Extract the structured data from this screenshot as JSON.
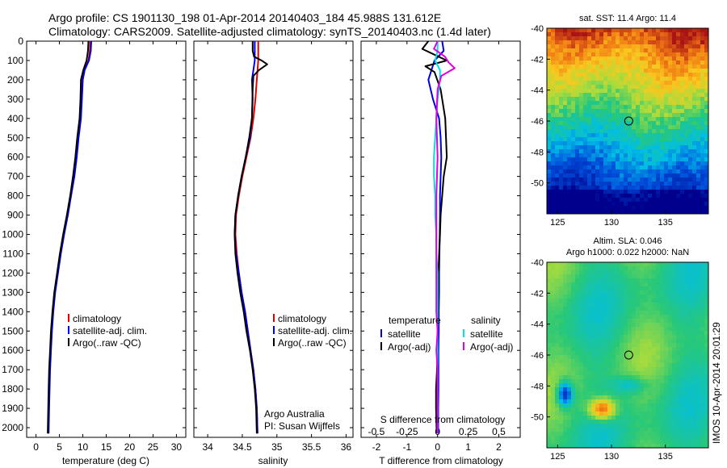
{
  "header": {
    "line1": "Argo profile: CS 1901130_198 01-Apr-2014 20140403_184 45.988S 131.612E",
    "line2": "Climatology: CARS2009. Satellite-adjusted climatology: synTS_20140403.nc (1.4d later)"
  },
  "colors": {
    "climatology": "#e00000",
    "satellite": "#0000e0",
    "argo": "#000000",
    "salinity_satellite": "#00e0e0",
    "salinity_argo": "#e000e0"
  },
  "side_text": "IMOS 10-Apr-2014 20:01:29",
  "chart_data": [
    {
      "type": "line",
      "xlabel": "temperature (deg C)",
      "ylabel": "",
      "xlim": [
        -2,
        32
      ],
      "ylim": [
        2050,
        0
      ],
      "xticks": [
        0,
        5,
        10,
        15,
        20,
        25,
        30
      ],
      "yticks": [
        0,
        100,
        200,
        300,
        400,
        500,
        600,
        700,
        800,
        900,
        1000,
        1100,
        1200,
        1300,
        1400,
        1500,
        1600,
        1700,
        1800,
        1900,
        2000
      ],
      "legend": [
        "climatology",
        "satellite-adj. clim.",
        "Argo(..raw -QC)"
      ],
      "legend_position": "lower-right",
      "series": [
        {
          "name": "climatology",
          "color": "#e00000",
          "x": [
            11.6,
            11.5,
            11.2,
            10.3,
            9.9,
            9.7,
            9.5,
            9.0,
            8.6,
            8.1,
            7.4,
            6.7,
            5.9,
            5.2,
            4.6,
            4.0,
            3.6,
            3.3,
            3.1,
            2.9,
            2.8,
            2.7,
            2.6
          ],
          "y": [
            0,
            50,
            100,
            150,
            200,
            300,
            400,
            500,
            600,
            700,
            800,
            900,
            1000,
            1100,
            1200,
            1300,
            1400,
            1500,
            1600,
            1700,
            1800,
            1900,
            2030
          ]
        },
        {
          "name": "satellite-adj. clim.",
          "color": "#0000e0",
          "x": [
            11.8,
            11.7,
            11.3,
            10.4,
            10.0,
            9.8,
            9.6,
            9.1,
            8.7,
            8.2,
            7.5,
            6.8,
            6.0,
            5.3,
            4.7,
            4.1,
            3.7,
            3.4,
            3.2,
            3.0,
            2.9,
            2.8,
            2.7
          ],
          "y": [
            0,
            50,
            100,
            150,
            200,
            300,
            400,
            500,
            600,
            700,
            800,
            900,
            1000,
            1100,
            1200,
            1300,
            1400,
            1500,
            1600,
            1700,
            1800,
            1900,
            2030
          ]
        },
        {
          "name": "Argo(..raw -QC)",
          "color": "#000000",
          "x": [
            11.2,
            11.1,
            10.8,
            10.1,
            9.6,
            9.5,
            9.3,
            8.8,
            8.4,
            7.9,
            7.3,
            6.6,
            5.8,
            5.1,
            4.5,
            3.9,
            3.5,
            3.2,
            3.0,
            2.8,
            2.7,
            2.6,
            2.5
          ],
          "y": [
            0,
            50,
            100,
            150,
            200,
            300,
            400,
            500,
            600,
            700,
            800,
            900,
            1000,
            1100,
            1200,
            1300,
            1400,
            1500,
            1600,
            1700,
            1800,
            1900,
            2030
          ]
        }
      ]
    },
    {
      "type": "line",
      "xlabel": "salinity",
      "ylabel": "",
      "xlim": [
        33.8,
        36.1
      ],
      "ylim": [
        2050,
        0
      ],
      "xticks": [
        34,
        34.5,
        35,
        35.5,
        36
      ],
      "xtick_labels": [
        "34",
        "34.5",
        "35",
        "35.5",
        "36"
      ],
      "legend": [
        "climatology",
        "satellite-adj. clim.",
        "Argo(..raw -QC)"
      ],
      "legend_position": "lower-right",
      "annotation": [
        "Argo Australia",
        "PI: Susan Wijffels"
      ],
      "series": [
        {
          "name": "climatology",
          "color": "#e00000",
          "x": [
            34.73,
            34.73,
            34.73,
            34.72,
            34.71,
            34.69,
            34.66,
            34.62,
            34.56,
            34.5,
            34.45,
            34.41,
            34.4,
            34.42,
            34.45,
            34.49,
            34.54,
            34.58,
            34.62,
            34.66,
            34.69,
            34.71,
            34.72
          ],
          "y": [
            0,
            50,
            100,
            150,
            200,
            300,
            400,
            500,
            600,
            700,
            800,
            900,
            1000,
            1100,
            1200,
            1300,
            1400,
            1500,
            1600,
            1700,
            1800,
            1900,
            2030
          ]
        },
        {
          "name": "satellite-adj. clim.",
          "color": "#0000e0",
          "x": [
            34.68,
            34.68,
            34.68,
            34.66,
            34.64,
            34.65,
            34.64,
            34.61,
            34.55,
            34.49,
            34.44,
            34.4,
            34.39,
            34.41,
            34.45,
            34.49,
            34.54,
            34.58,
            34.62,
            34.66,
            34.69,
            34.71,
            34.72
          ],
          "y": [
            0,
            50,
            100,
            150,
            200,
            300,
            400,
            500,
            600,
            700,
            800,
            900,
            1000,
            1100,
            1200,
            1300,
            1400,
            1500,
            1600,
            1700,
            1800,
            1900,
            2030
          ]
        },
        {
          "name": "Argo(..raw -QC)",
          "color": "#000000",
          "x": [
            34.65,
            34.65,
            34.67,
            34.78,
            34.86,
            34.74,
            34.66,
            34.65,
            34.64,
            34.6,
            34.55,
            34.49,
            34.44,
            34.4,
            34.39,
            34.4,
            34.43,
            34.47,
            34.52,
            34.56,
            34.61,
            34.65,
            34.68,
            34.7,
            34.71
          ],
          "y": [
            0,
            50,
            80,
            100,
            120,
            150,
            180,
            250,
            400,
            500,
            600,
            700,
            800,
            900,
            1000,
            1100,
            1200,
            1300,
            1400,
            1500,
            1600,
            1700,
            1800,
            1900,
            2030
          ]
        }
      ]
    },
    {
      "type": "line",
      "xlabel": "T difference from climatology",
      "xlabel2": "S difference from climatology",
      "xlim": [
        -2.5,
        2.7
      ],
      "ylim": [
        2050,
        0
      ],
      "xticks": [
        -2,
        -1,
        0,
        1,
        2
      ],
      "xticks2": [
        -0.5,
        -0.25,
        0,
        0.25,
        0.5
      ],
      "xtick2_labels": [
        "-0.5",
        "-0.25",
        "0",
        "0.25",
        "0.5"
      ],
      "legend_headers": [
        "temperature",
        "salinity"
      ],
      "legend": [
        "satellite",
        "Argo(-adj)",
        "satellite",
        "Argo(-adj)"
      ],
      "legend_position": "lower-right",
      "series": [
        {
          "name": "satellite",
          "color": "#0000e0",
          "x": [
            0.15,
            0.2,
            -0.1,
            -0.3,
            -0.15,
            0.05,
            0.1,
            0.12,
            0.1,
            0.08,
            0.08,
            0.07,
            0.06,
            0.05,
            0.05,
            0.04,
            0.04,
            0.03,
            0.03,
            0.03,
            0.02,
            0.02
          ],
          "y": [
            0,
            50,
            100,
            200,
            300,
            400,
            500,
            600,
            700,
            800,
            900,
            1000,
            1100,
            1200,
            1300,
            1400,
            1500,
            1600,
            1700,
            1800,
            1900,
            2030
          ]
        },
        {
          "name": "Argo(-adj)",
          "color": "#000000",
          "x": [
            -0.3,
            -0.5,
            -0.1,
            0.3,
            -0.4,
            -0.1,
            0.1,
            0.25,
            0.3,
            0.2,
            0.15,
            0.1,
            0.08,
            0.05,
            0.03,
            0.02,
            0.02,
            0.0,
            0.0,
            -0.02,
            -0.05,
            -0.05,
            -0.04,
            -0.03
          ],
          "y": [
            0,
            40,
            70,
            100,
            130,
            160,
            250,
            400,
            600,
            700,
            800,
            900,
            1000,
            1100,
            1200,
            1300,
            1400,
            1500,
            1600,
            1700,
            1800,
            1900,
            1960,
            2030
          ]
        },
        {
          "name": "satellite",
          "color": "#00e0e0",
          "x": [
            0.0,
            0.0,
            -0.02,
            0.02,
            0.02,
            0.0,
            -0.01,
            -0.02,
            -0.03,
            -0.03,
            -0.02,
            -0.02,
            -0.01,
            -0.01,
            0.0,
            0.0,
            0.0,
            0.0,
            0.0,
            0.0,
            0.0
          ],
          "y": [
            0,
            50,
            100,
            150,
            200,
            300,
            400,
            500,
            600,
            700,
            800,
            900,
            1000,
            1100,
            1200,
            1300,
            1400,
            1500,
            1600,
            1700,
            2030
          ]
        },
        {
          "name": "Argo(-adj)",
          "color": "#e000e0",
          "x": [
            0.0,
            -0.03,
            0.06,
            0.09,
            0.14,
            0.03,
            0.0,
            -0.01,
            0.0,
            -0.01,
            -0.01,
            -0.01,
            -0.01,
            -0.01,
            0.0,
            -0.01,
            0.0,
            0.0,
            0.0
          ],
          "y": [
            0,
            40,
            80,
            110,
            140,
            180,
            250,
            400,
            600,
            800,
            1000,
            1200,
            1300,
            1400,
            1500,
            1600,
            1700,
            1900,
            2030
          ]
        }
      ]
    },
    {
      "type": "heatmap",
      "title": "sat. SST: 11.4  Argo: 11.4",
      "xlim": [
        124,
        139
      ],
      "ylim": [
        -52,
        -40
      ],
      "xticks": [
        125,
        130,
        135
      ],
      "yticks": [
        -40,
        -42,
        -44,
        -46,
        -48,
        -50
      ],
      "marker": {
        "x": 131.6,
        "y": -46.0
      }
    },
    {
      "type": "heatmap",
      "title": "Altim. SLA: 0.046",
      "subtitle": "Argo h1000: 0.022 h2000: NaN",
      "xlim": [
        124,
        139
      ],
      "ylim": [
        -52,
        -40
      ],
      "xticks": [
        125,
        130,
        135
      ],
      "yticks": [
        -40,
        -42,
        -44,
        -46,
        -48,
        -50
      ],
      "marker": {
        "x": 131.6,
        "y": -46.0
      }
    }
  ]
}
